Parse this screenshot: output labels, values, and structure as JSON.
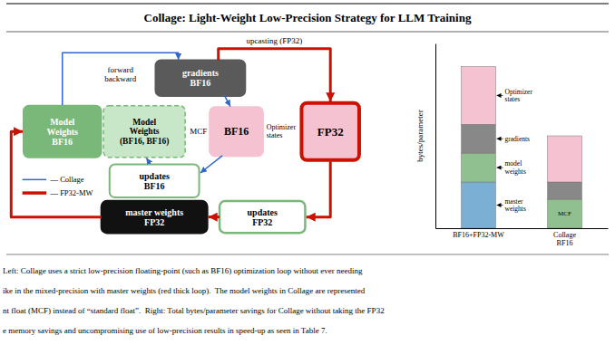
{
  "chart_data": {
    "type": "bar",
    "stacked": true,
    "title": "Collage: Light-Weight Low-Precision Strategy for LLM Training",
    "categories": [
      "BF16+FP32-MW",
      "Collage\nBF16"
    ],
    "series": [
      {
        "name": "master\nweights",
        "color": "#7bafd4",
        "values": [
          4,
          null
        ]
      },
      {
        "name": "model\nweights",
        "color": "#90c090",
        "values": [
          2.5,
          2.5
        ]
      },
      {
        "name": "gradients",
        "color": "#888888",
        "values": [
          2.5,
          1.5
        ]
      },
      {
        "name": "Optimizer\nstates",
        "color": "#f4c2d0",
        "values": [
          5,
          4
        ]
      }
    ],
    "ylabel": "bytes/parameter",
    "ylim": [
      0,
      16
    ],
    "yticks": [],
    "tick_labels": "x",
    "grid": false,
    "annotations": [
      {
        "text": "MCF",
        "series": 1,
        "category": 1
      },
      {
        "text": "Model\nWeights\nBF16"
      },
      {
        "text": "Model\nWeights\n(BF16, BF16)"
      },
      {
        "text": "MCF"
      },
      {
        "text": "gradients\nBF16"
      },
      {
        "text": "BF16"
      },
      {
        "text": "Optimizer\nstates"
      },
      {
        "text": "FP32"
      },
      {
        "text": "updates\nBF16"
      },
      {
        "text": "master weights\nFP32"
      },
      {
        "text": "updates\nFP32"
      },
      {
        "text": "forward\nbackward"
      },
      {
        "text": "upcasting (FP32)"
      },
      {
        "text": "— Collage"
      },
      {
        "text": "— FP32-MW"
      },
      {
        "text": "Left: Collage uses a strict low-precision floating-point (such as BF16) optimization loop without ever needing"
      },
      {
        "text": "ike in the mixed-precision with master weights (red thick loop).  The model weights in Collage are represented"
      },
      {
        "text": "nt float (MCF) instead of “standard float”.  Right: Total bytes/parameter savings for Collage without taking the FP32"
      },
      {
        "text": "e memory savings and uncompromising use of low-precision results in speed-up as seen in Table 7."
      }
    ]
  }
}
